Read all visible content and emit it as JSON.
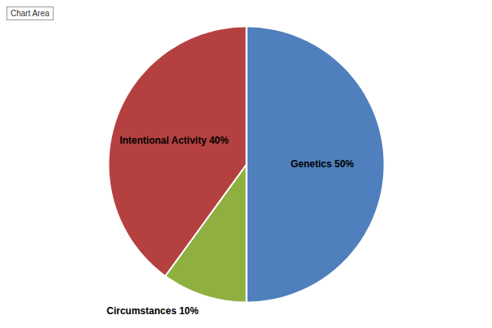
{
  "chart_data": {
    "type": "pie",
    "categories": [
      "Genetics 50%",
      "Circumstances 10%",
      "Intentional Activity 40%"
    ],
    "values": [
      50,
      10,
      40
    ],
    "colors": [
      "#4F7FBD",
      "#8FB040",
      "#B54040"
    ],
    "annotations": [
      "Chart Area"
    ]
  }
}
